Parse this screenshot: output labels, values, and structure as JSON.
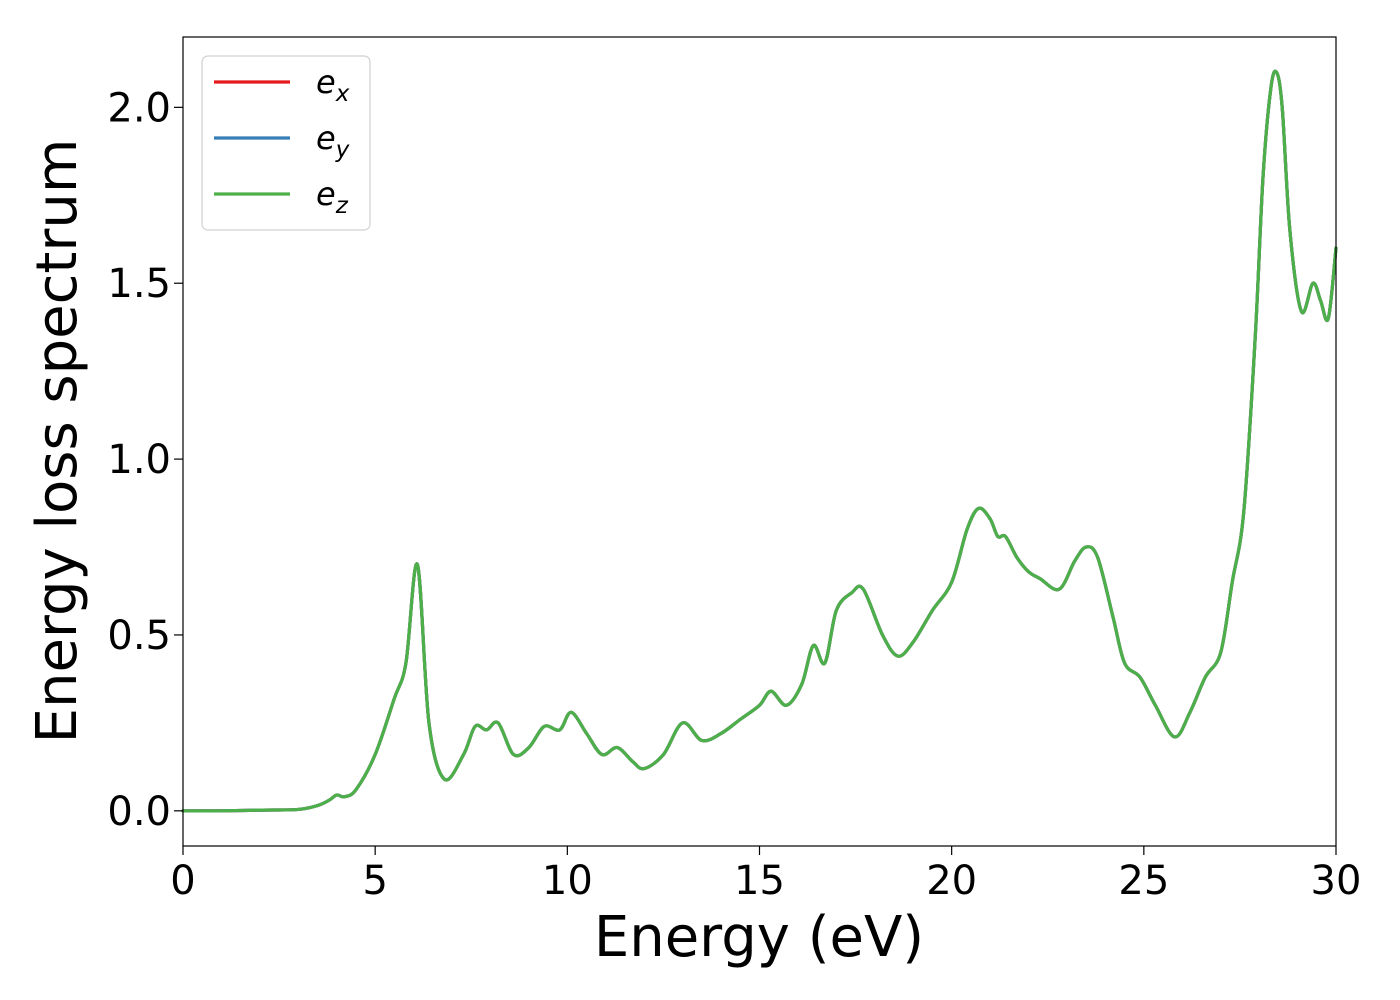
{
  "chart_data": {
    "type": "line",
    "title": "",
    "xlabel": "Energy (eV)",
    "ylabel": "Energy loss spectrum",
    "xlim": [
      0,
      30
    ],
    "ylim": [
      -0.1,
      2.2
    ],
    "xticks": [
      0,
      5,
      10,
      15,
      20,
      25,
      30
    ],
    "xtick_labels": [
      "0",
      "5",
      "10",
      "15",
      "20",
      "25",
      "30"
    ],
    "yticks": [
      0.0,
      0.5,
      1.0,
      1.5,
      2.0
    ],
    "ytick_labels": [
      "0.0",
      "0.5",
      "1.0",
      "1.5",
      "2.0"
    ],
    "grid": false,
    "legend_position": "top-left",
    "x": [
      0,
      1,
      2,
      3,
      3.5,
      3.8,
      4.0,
      4.2,
      4.5,
      5.0,
      5.5,
      5.8,
      6.1,
      6.4,
      6.8,
      7.3,
      7.6,
      7.9,
      8.2,
      8.6,
      9.0,
      9.4,
      9.8,
      10.1,
      10.5,
      10.9,
      11.3,
      11.7,
      12.0,
      12.5,
      13.0,
      13.5,
      14.0,
      14.5,
      15.0,
      15.3,
      15.7,
      16.1,
      16.4,
      16.7,
      17.0,
      17.4,
      17.7,
      18.2,
      18.6,
      19.0,
      19.5,
      20.0,
      20.4,
      20.7,
      21.0,
      21.2,
      21.4,
      21.7,
      22.0,
      22.3,
      22.8,
      23.2,
      23.5,
      23.8,
      24.2,
      24.5,
      24.9,
      25.3,
      25.8,
      26.2,
      26.6,
      27.0,
      27.3,
      27.6,
      27.9,
      28.1,
      28.3,
      28.45,
      28.6,
      28.8,
      29.1,
      29.4,
      29.6,
      29.8,
      30.0
    ],
    "series": [
      {
        "name": "e_x",
        "color": "#e41a1c",
        "values": [
          0,
          0,
          0.002,
          0.004,
          0.015,
          0.03,
          0.045,
          0.04,
          0.06,
          0.16,
          0.32,
          0.42,
          0.7,
          0.25,
          0.09,
          0.16,
          0.24,
          0.23,
          0.25,
          0.16,
          0.18,
          0.24,
          0.23,
          0.28,
          0.22,
          0.16,
          0.18,
          0.14,
          0.12,
          0.16,
          0.25,
          0.2,
          0.22,
          0.26,
          0.3,
          0.34,
          0.3,
          0.36,
          0.47,
          0.42,
          0.57,
          0.62,
          0.63,
          0.5,
          0.44,
          0.48,
          0.57,
          0.65,
          0.8,
          0.86,
          0.83,
          0.78,
          0.78,
          0.72,
          0.68,
          0.66,
          0.63,
          0.71,
          0.75,
          0.72,
          0.55,
          0.42,
          0.38,
          0.3,
          0.21,
          0.28,
          0.38,
          0.45,
          0.65,
          0.85,
          1.35,
          1.8,
          2.05,
          2.1,
          2.0,
          1.65,
          1.42,
          1.5,
          1.45,
          1.4,
          1.6
        ]
      },
      {
        "name": "e_y",
        "color": "#377eb8",
        "values": [
          0,
          0,
          0.002,
          0.004,
          0.015,
          0.03,
          0.045,
          0.04,
          0.06,
          0.16,
          0.32,
          0.42,
          0.7,
          0.25,
          0.09,
          0.16,
          0.24,
          0.23,
          0.25,
          0.16,
          0.18,
          0.24,
          0.23,
          0.28,
          0.22,
          0.16,
          0.18,
          0.14,
          0.12,
          0.16,
          0.25,
          0.2,
          0.22,
          0.26,
          0.3,
          0.34,
          0.3,
          0.36,
          0.47,
          0.42,
          0.57,
          0.62,
          0.63,
          0.5,
          0.44,
          0.48,
          0.57,
          0.65,
          0.8,
          0.86,
          0.83,
          0.78,
          0.78,
          0.72,
          0.68,
          0.66,
          0.63,
          0.71,
          0.75,
          0.72,
          0.55,
          0.42,
          0.38,
          0.3,
          0.21,
          0.28,
          0.38,
          0.45,
          0.65,
          0.85,
          1.35,
          1.8,
          2.05,
          2.1,
          2.0,
          1.65,
          1.42,
          1.5,
          1.45,
          1.4,
          1.6
        ]
      },
      {
        "name": "e_z",
        "color": "#4daf4a",
        "values": [
          0,
          0,
          0.002,
          0.004,
          0.015,
          0.03,
          0.045,
          0.04,
          0.06,
          0.16,
          0.32,
          0.42,
          0.7,
          0.25,
          0.09,
          0.16,
          0.24,
          0.23,
          0.25,
          0.16,
          0.18,
          0.24,
          0.23,
          0.28,
          0.22,
          0.16,
          0.18,
          0.14,
          0.12,
          0.16,
          0.25,
          0.2,
          0.22,
          0.26,
          0.3,
          0.34,
          0.3,
          0.36,
          0.47,
          0.42,
          0.57,
          0.62,
          0.63,
          0.5,
          0.44,
          0.48,
          0.57,
          0.65,
          0.8,
          0.86,
          0.83,
          0.78,
          0.78,
          0.72,
          0.68,
          0.66,
          0.63,
          0.71,
          0.75,
          0.72,
          0.55,
          0.42,
          0.38,
          0.3,
          0.21,
          0.28,
          0.38,
          0.45,
          0.65,
          0.85,
          1.35,
          1.8,
          2.05,
          2.1,
          2.0,
          1.65,
          1.42,
          1.5,
          1.45,
          1.4,
          1.6
        ]
      }
    ],
    "legend": [
      {
        "base": "e",
        "sub": "x",
        "color": "#e41a1c"
      },
      {
        "base": "e",
        "sub": "y",
        "color": "#377eb8"
      },
      {
        "base": "e",
        "sub": "z",
        "color": "#4daf4a"
      }
    ]
  }
}
